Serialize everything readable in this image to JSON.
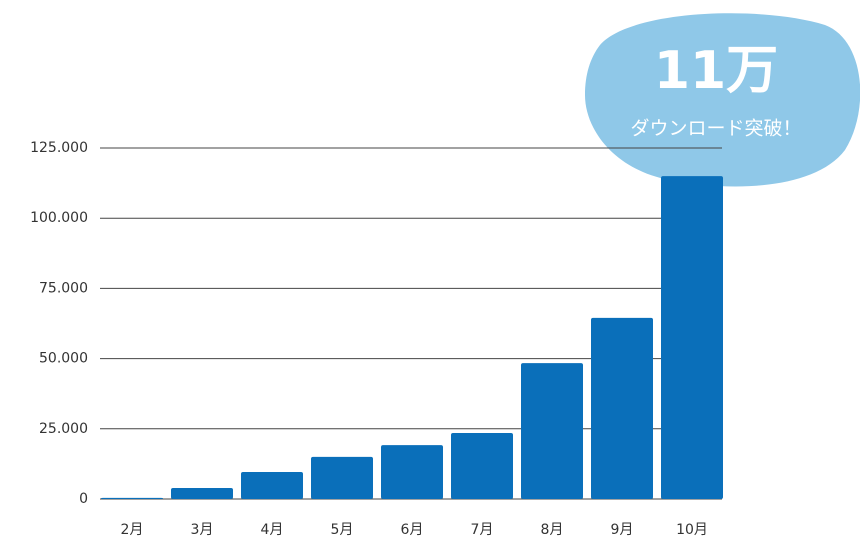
{
  "chart_data": {
    "type": "bar",
    "categories": [
      "2月",
      "3月",
      "4月",
      "5月",
      "6月",
      "7月",
      "8月",
      "9月",
      "10月"
    ],
    "values": [
      400,
      3900,
      9600,
      15000,
      19200,
      23500,
      48400,
      64500,
      115000
    ],
    "color": "#0a6fba",
    "ylim": [
      0,
      125000
    ],
    "yticks": [
      0,
      {
        "value": 25000,
        "label": "25.000"
      },
      {
        "value": 50000,
        "label": "50.000"
      },
      {
        "value": 75000,
        "label": "75.000"
      },
      {
        "value": 100000,
        "label": "100.000"
      },
      {
        "value": 125000,
        "label": "125.000"
      }
    ],
    "grid": true,
    "annotation": {
      "headline": "11万",
      "text": "ダウンロード突破！",
      "color": "#8fc8e8"
    }
  }
}
